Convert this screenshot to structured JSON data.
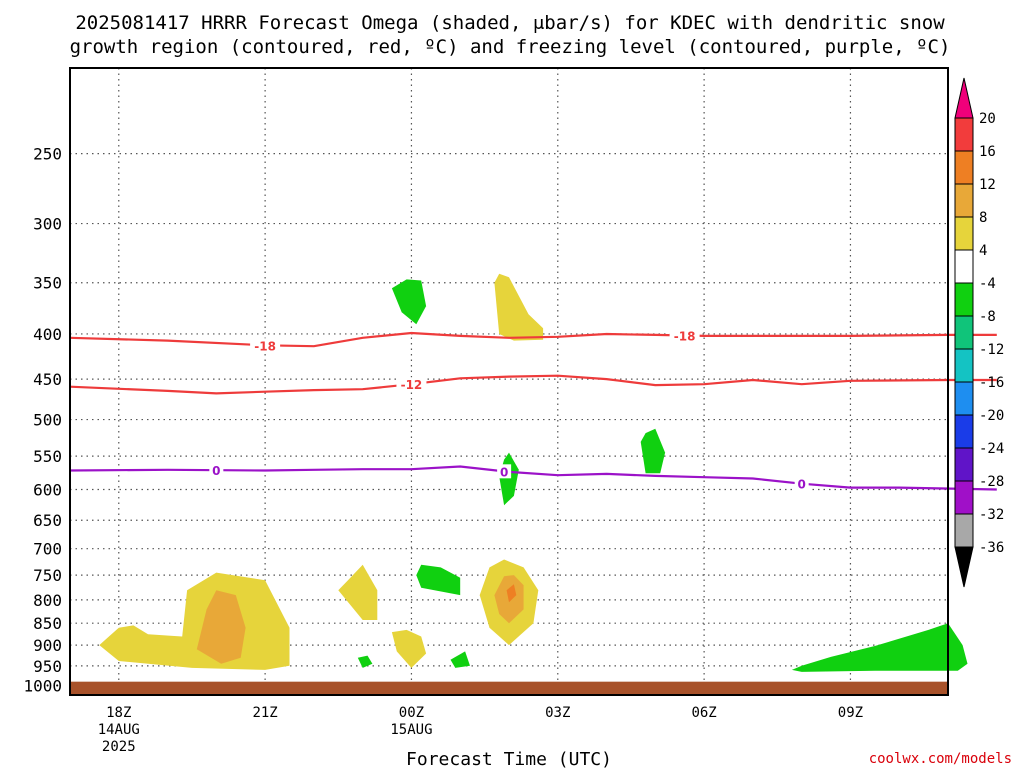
{
  "title": {
    "line1": "2025081417 HRRR Forecast Omega (shaded, μbar/s) for KDEC with dendritic snow",
    "line2": "growth region (contoured, red, ºC) and freezing level (contoured, purple, ºC)"
  },
  "credit": "coolwx.com/models",
  "chart_data": {
    "type": "heatmap",
    "title": "2025081417 HRRR Forecast Omega (shaded, μbar/s) for KDEC with dendritic snow growth region (contoured, red, ºC) and freezing level (contoured, purple, ºC)",
    "xlabel": "Forecast Time (UTC)",
    "ylabel": "",
    "x_scale": "time",
    "x_range": [
      "2025-08-14T17:00Z",
      "2025-08-15T11:00Z"
    ],
    "x_ticks": [
      {
        "value": "2025-08-14T18:00Z",
        "label": "18Z",
        "sub": [
          "14AUG",
          "2025"
        ]
      },
      {
        "value": "2025-08-14T21:00Z",
        "label": "21Z",
        "sub": []
      },
      {
        "value": "2025-08-15T00:00Z",
        "label": "00Z",
        "sub": [
          "15AUG"
        ]
      },
      {
        "value": "2025-08-15T03:00Z",
        "label": "03Z",
        "sub": []
      },
      {
        "value": "2025-08-15T06:00Z",
        "label": "06Z",
        "sub": []
      },
      {
        "value": "2025-08-15T09:00Z",
        "label": "09Z",
        "sub": []
      }
    ],
    "y_scale": "log",
    "y_reversed": true,
    "y_range": [
      1025,
      200
    ],
    "y_ticks": [
      250,
      300,
      350,
      400,
      450,
      500,
      550,
      600,
      650,
      700,
      750,
      800,
      850,
      900,
      950,
      1000
    ],
    "grid": true,
    "surface_pressure": 990,
    "surface_color": "#a8522a",
    "colorbar": {
      "unit": "μbar/s",
      "orientation": "vertical",
      "placement": "right",
      "labels": [
        "20",
        "16",
        "12",
        "8",
        "4",
        "-4",
        "-8",
        "-12",
        "-16",
        "-20",
        "-24",
        "-28",
        "-32",
        "-36"
      ],
      "bins": [
        {
          "range": "> 20",
          "color": "#f0007a"
        },
        {
          "range": "16 to 20",
          "color": "#f23c3c"
        },
        {
          "range": "12 to 16",
          "color": "#ee7f23"
        },
        {
          "range": "8 to 12",
          "color": "#e8a838"
        },
        {
          "range": "4 to 8",
          "color": "#e6d43b"
        },
        {
          "range": "-4 to 4",
          "color": "#ffffff"
        },
        {
          "range": "-8 to -4",
          "color": "#10d010"
        },
        {
          "range": "-12 to -8",
          "color": "#10c47a"
        },
        {
          "range": "-16 to -12",
          "color": "#14c3c3"
        },
        {
          "range": "-20 to -16",
          "color": "#1e8ef0"
        },
        {
          "range": "-24 to -20",
          "color": "#1a3ce8"
        },
        {
          "range": "-28 to -24",
          "color": "#6014c8"
        },
        {
          "range": "-32 to -28",
          "color": "#a010c8"
        },
        {
          "range": "-36 to -32",
          "color": "#a8a8a8"
        },
        {
          "range": "< -36",
          "color": "#000000"
        }
      ]
    },
    "contours": [
      {
        "name": "-18",
        "color": "#ee3b3b",
        "labels_hour": [
          3.0,
          11.6
        ],
        "points": [
          [
            -1.0,
            404
          ],
          [
            1.0,
            407
          ],
          [
            3.0,
            412
          ],
          [
            4.0,
            413
          ],
          [
            5.0,
            404
          ],
          [
            6.0,
            399
          ],
          [
            7.0,
            402
          ],
          [
            8.0,
            404
          ],
          [
            9.0,
            403
          ],
          [
            10.0,
            400
          ],
          [
            11.0,
            401
          ],
          [
            12.0,
            402
          ],
          [
            13.0,
            402
          ],
          [
            15.0,
            402
          ],
          [
            17.0,
            401
          ],
          [
            18.0,
            401
          ]
        ]
      },
      {
        "name": "-12",
        "color": "#ee3b3b",
        "labels_hour": [
          6.0
        ],
        "points": [
          [
            -1.0,
            459
          ],
          [
            1.0,
            464
          ],
          [
            2.0,
            467
          ],
          [
            3.0,
            465
          ],
          [
            4.0,
            463
          ],
          [
            5.0,
            462
          ],
          [
            6.0,
            456
          ],
          [
            7.0,
            449
          ],
          [
            8.0,
            447
          ],
          [
            9.0,
            446
          ],
          [
            10.0,
            450
          ],
          [
            11.0,
            457
          ],
          [
            12.0,
            456
          ],
          [
            13.0,
            451
          ],
          [
            14.0,
            456
          ],
          [
            15.0,
            452
          ],
          [
            17.0,
            451
          ],
          [
            18.0,
            451
          ]
        ]
      },
      {
        "name": "0",
        "color": "#9b12c8",
        "labels_hour": [
          2.0,
          7.9,
          14.0
        ],
        "points": [
          [
            -1.0,
            571
          ],
          [
            1.0,
            570
          ],
          [
            3.0,
            571
          ],
          [
            4.0,
            570
          ],
          [
            5.0,
            569
          ],
          [
            6.0,
            569
          ],
          [
            7.0,
            565
          ],
          [
            8.0,
            573
          ],
          [
            9.0,
            578
          ],
          [
            10.0,
            576
          ],
          [
            11.0,
            579
          ],
          [
            12.0,
            581
          ],
          [
            13.0,
            583
          ],
          [
            14.0,
            591
          ],
          [
            15.0,
            597
          ],
          [
            16.0,
            597
          ],
          [
            18.0,
            600
          ]
        ]
      }
    ],
    "omega_regions": [
      {
        "bin": "4 to 8",
        "points": [
          [
            0.0,
            860
          ],
          [
            -0.4,
            900
          ],
          [
            0.0,
            938
          ],
          [
            1.5,
            955
          ],
          [
            3.0,
            960
          ],
          [
            3.5,
            950
          ],
          [
            3.5,
            860
          ],
          [
            3.0,
            760
          ],
          [
            2.0,
            745
          ],
          [
            1.4,
            780
          ],
          [
            1.3,
            880
          ],
          [
            0.6,
            875
          ],
          [
            0.3,
            855
          ]
        ]
      },
      {
        "bin": "8 to 12",
        "points": [
          [
            1.6,
            910
          ],
          [
            2.1,
            945
          ],
          [
            2.5,
            930
          ],
          [
            2.6,
            860
          ],
          [
            2.4,
            790
          ],
          [
            2.0,
            780
          ],
          [
            1.8,
            820
          ]
        ]
      },
      {
        "bin": "4 to 8",
        "points": [
          [
            4.5,
            780
          ],
          [
            5.0,
            843
          ],
          [
            5.3,
            843
          ],
          [
            5.3,
            780
          ],
          [
            5.0,
            730
          ],
          [
            4.7,
            760
          ]
        ]
      },
      {
        "bin": "-8 to -4",
        "points": [
          [
            4.9,
            930
          ],
          [
            5.0,
            955
          ],
          [
            5.2,
            945
          ],
          [
            5.1,
            925
          ]
        ]
      },
      {
        "bin": "-8 to -4",
        "points": [
          [
            6.1,
            750
          ],
          [
            6.2,
            775
          ],
          [
            7.0,
            790
          ],
          [
            7.0,
            755
          ],
          [
            6.6,
            735
          ],
          [
            6.2,
            730
          ]
        ]
      },
      {
        "bin": "4 to 8",
        "points": [
          [
            5.6,
            870
          ],
          [
            5.7,
            915
          ],
          [
            6.0,
            955
          ],
          [
            6.3,
            920
          ],
          [
            6.2,
            880
          ],
          [
            5.9,
            865
          ]
        ]
      },
      {
        "bin": "-8 to -4",
        "points": [
          [
            6.8,
            935
          ],
          [
            6.9,
            955
          ],
          [
            7.2,
            950
          ],
          [
            7.1,
            915
          ]
        ]
      },
      {
        "bin": "-8 to -4",
        "points": [
          [
            5.6,
            355
          ],
          [
            5.8,
            378
          ],
          [
            6.1,
            390
          ],
          [
            6.3,
            372
          ],
          [
            6.2,
            348
          ],
          [
            5.9,
            347
          ]
        ]
      },
      {
        "bin": "4 to 8",
        "points": [
          [
            7.7,
            350
          ],
          [
            7.8,
            400
          ],
          [
            8.1,
            407
          ],
          [
            8.7,
            406
          ],
          [
            8.7,
            394
          ],
          [
            8.4,
            380
          ],
          [
            8.0,
            345
          ],
          [
            7.8,
            342
          ]
        ]
      },
      {
        "bin": "4 to 8",
        "points": [
          [
            7.4,
            790
          ],
          [
            7.6,
            860
          ],
          [
            8.0,
            900
          ],
          [
            8.5,
            850
          ],
          [
            8.6,
            780
          ],
          [
            8.3,
            735
          ],
          [
            7.9,
            720
          ],
          [
            7.6,
            735
          ]
        ]
      },
      {
        "bin": "8 to 12",
        "points": [
          [
            7.7,
            790
          ],
          [
            7.8,
            830
          ],
          [
            8.0,
            850
          ],
          [
            8.3,
            820
          ],
          [
            8.3,
            770
          ],
          [
            8.1,
            750
          ],
          [
            7.9,
            752
          ]
        ]
      },
      {
        "bin": "12 to 16",
        "points": [
          [
            7.95,
            780
          ],
          [
            8.0,
            805
          ],
          [
            8.15,
            790
          ],
          [
            8.1,
            768
          ]
        ]
      },
      {
        "bin": "-8 to -4",
        "points": [
          [
            7.8,
            580
          ],
          [
            7.9,
            625
          ],
          [
            8.1,
            610
          ],
          [
            8.2,
            570
          ],
          [
            8.0,
            545
          ],
          [
            7.9,
            555
          ]
        ]
      },
      {
        "bin": "-8 to -4",
        "points": [
          [
            10.7,
            530
          ],
          [
            10.8,
            575
          ],
          [
            11.1,
            575
          ],
          [
            11.2,
            545
          ],
          [
            11.0,
            512
          ],
          [
            10.8,
            518
          ]
        ]
      },
      {
        "bin": "-8 to -4",
        "points": [
          [
            13.8,
            960
          ],
          [
            14.0,
            965
          ],
          [
            15.5,
            962
          ],
          [
            17.2,
            962
          ],
          [
            17.4,
            945
          ],
          [
            17.3,
            900
          ],
          [
            17.0,
            850
          ],
          [
            16.6,
            865
          ],
          [
            15.5,
            902
          ],
          [
            14.6,
            928
          ],
          [
            14.0,
            950
          ]
        ]
      }
    ]
  }
}
